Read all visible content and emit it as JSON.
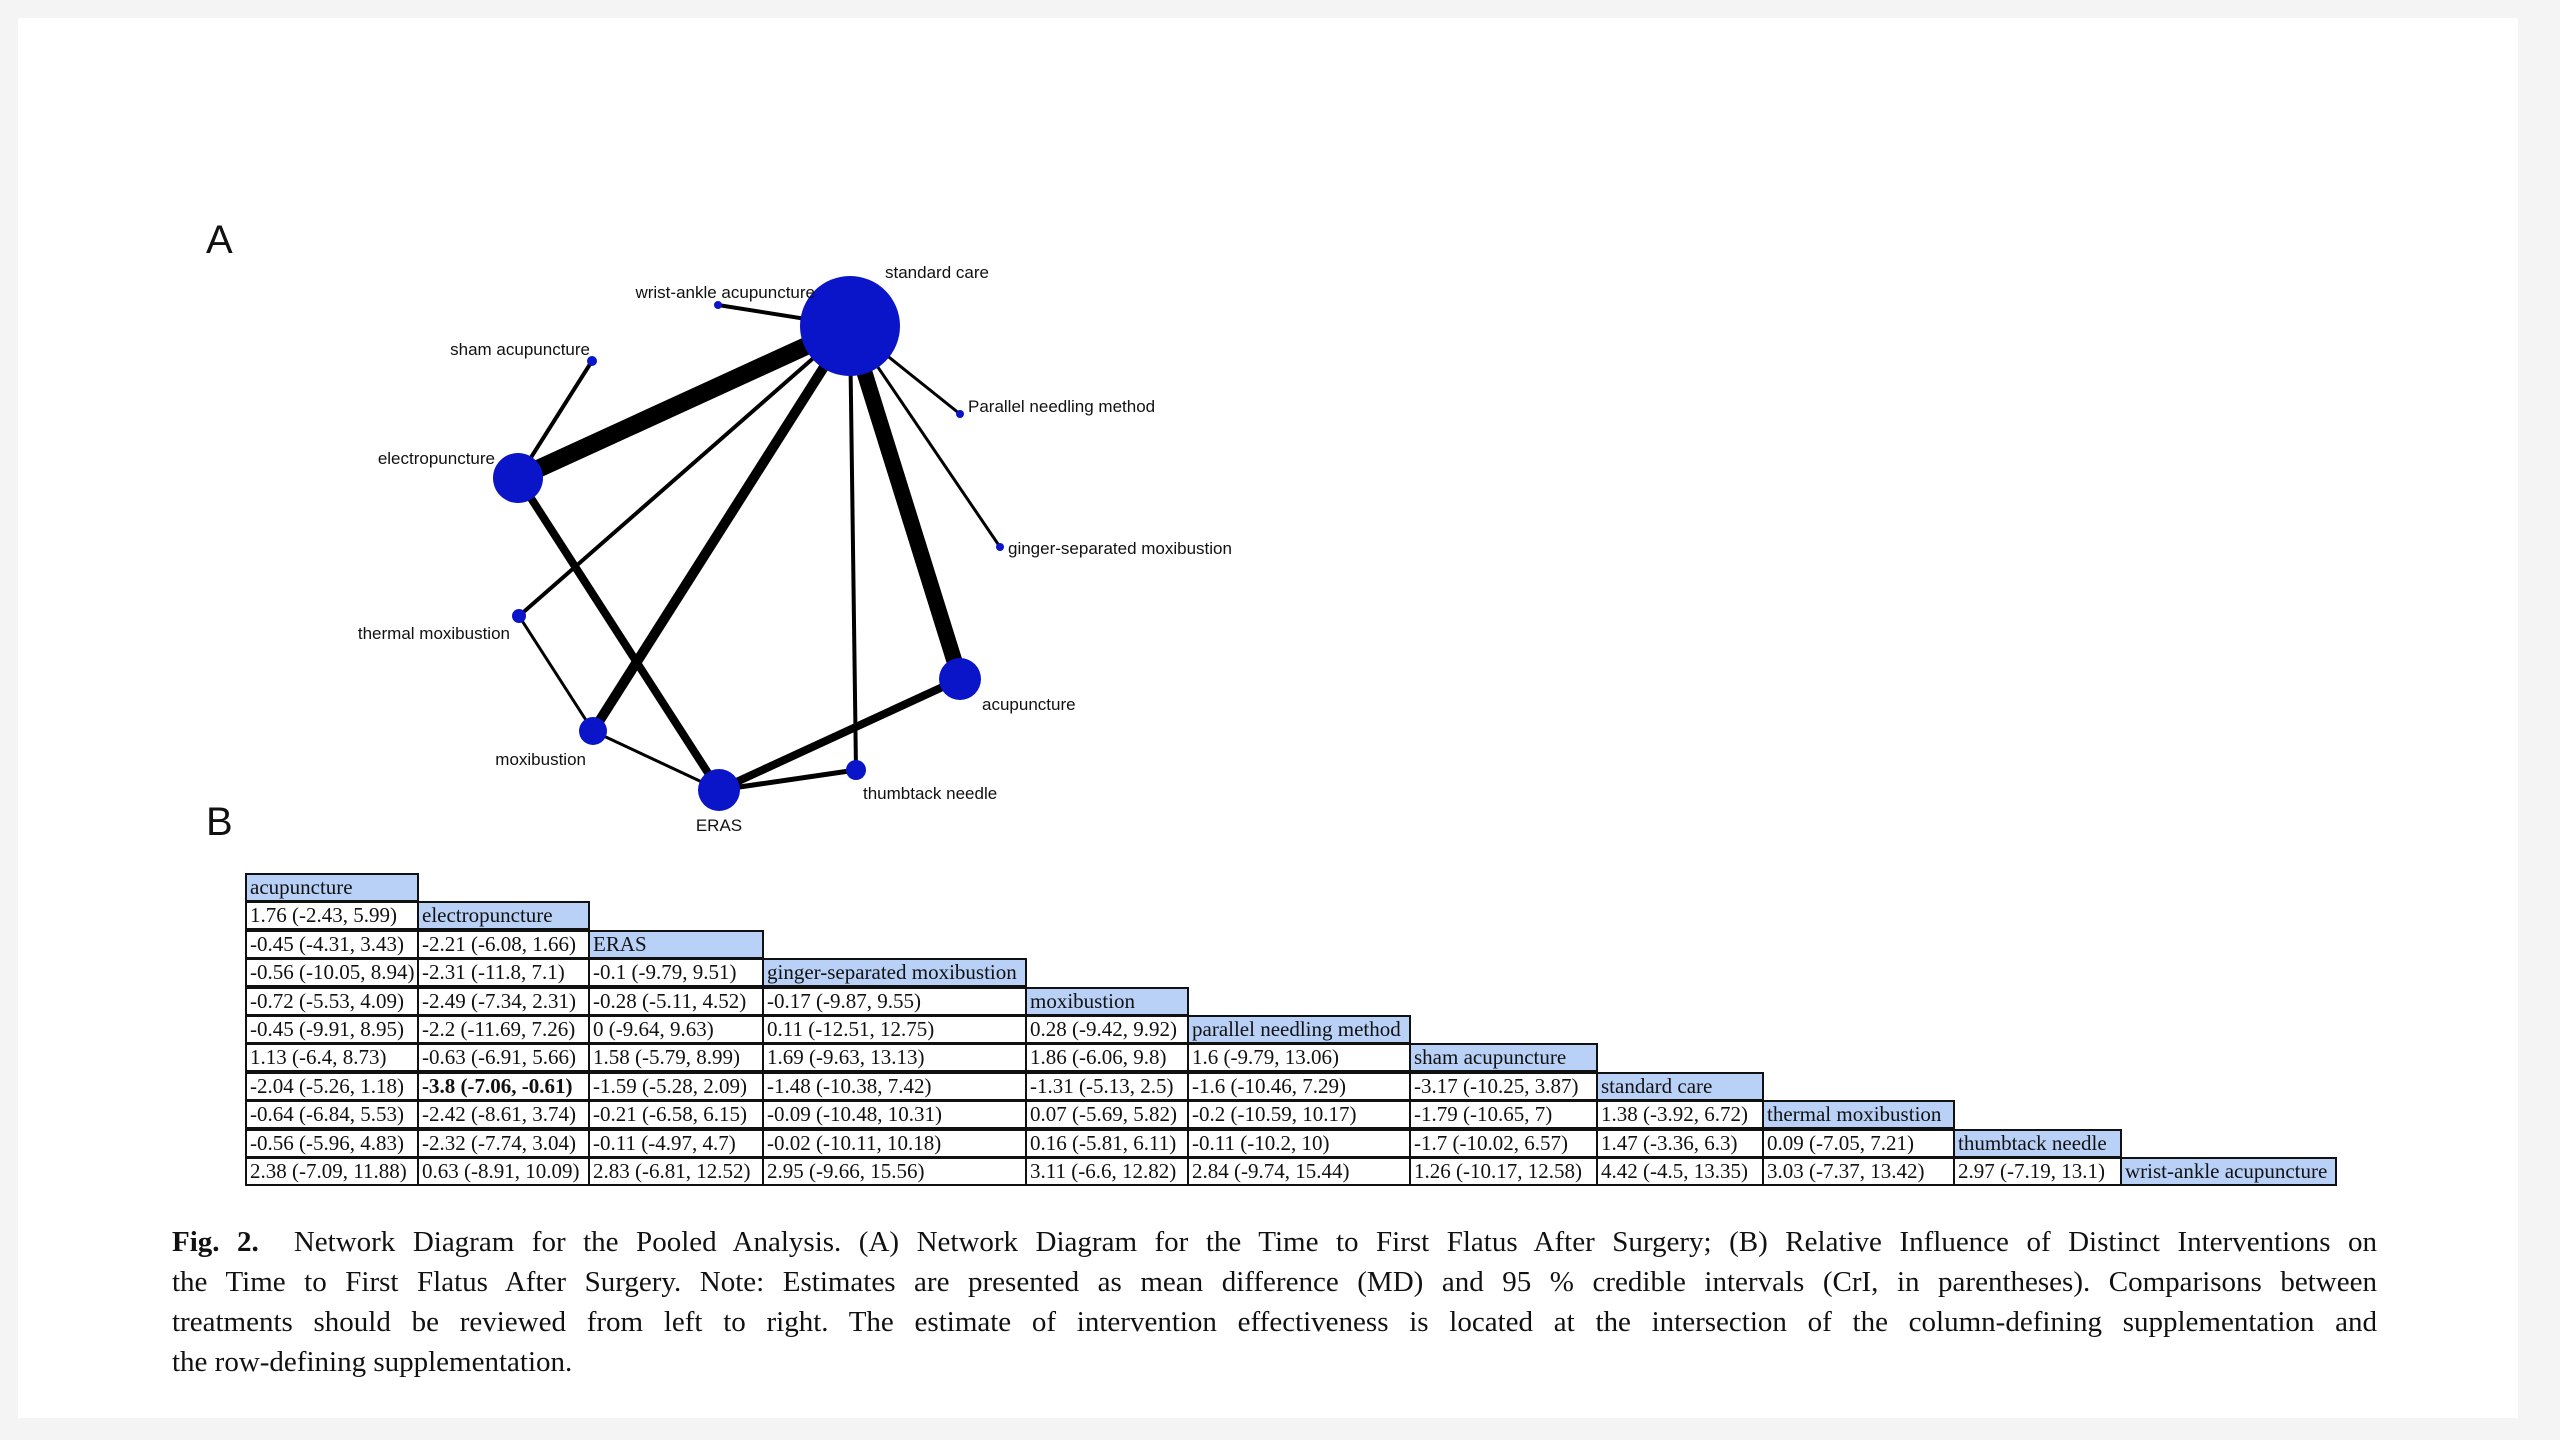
{
  "panel_a_label": "A",
  "panel_b_label": "B",
  "network": {
    "nodes": {
      "standard_care": "standard care",
      "wrist_ankle": "wrist-ankle acupuncture",
      "sham": "sham acupuncture",
      "electropuncture": "electropuncture",
      "thermal": "thermal moxibustion",
      "moxibustion": "moxibustion",
      "eras": "ERAS",
      "thumbtack": "thumbtack needle",
      "acupuncture": "acupuncture",
      "ginger": "ginger-separated moxibustion",
      "parallel": "Parallel needling method"
    },
    "node_color": "#0a14c8",
    "edge_color": "#000000"
  },
  "league_table": {
    "header_color": "#b9d1f7",
    "treatments": [
      "acupuncture",
      "electropuncture",
      "ERAS",
      "ginger-separated moxibustion",
      "moxibustion",
      "parallel needling method",
      "sham acupuncture",
      "standard care",
      "thermal moxibustion",
      "thumbtack needle",
      "wrist-ankle acupuncture"
    ],
    "rows": [
      [],
      [
        "1.76 (-2.43, 5.99)"
      ],
      [
        "-0.45 (-4.31, 3.43)",
        "-2.21 (-6.08, 1.66)"
      ],
      [
        "-0.56 (-10.05, 8.94)",
        "-2.31 (-11.8, 7.1)",
        "-0.1 (-9.79, 9.51)"
      ],
      [
        "-0.72 (-5.53, 4.09)",
        "-2.49 (-7.34, 2.31)",
        "-0.28 (-5.11, 4.52)",
        "-0.17 (-9.87, 9.55)"
      ],
      [
        "-0.45 (-9.91, 8.95)",
        "-2.2 (-11.69, 7.26)",
        "0 (-9.64, 9.63)",
        "0.11 (-12.51, 12.75)",
        "0.28 (-9.42, 9.92)"
      ],
      [
        "1.13 (-6.4, 8.73)",
        "-0.63 (-6.91, 5.66)",
        "1.58 (-5.79, 8.99)",
        "1.69 (-9.63, 13.13)",
        "1.86 (-6.06, 9.8)",
        "1.6 (-9.79, 13.06)"
      ],
      [
        "-2.04 (-5.26, 1.18)",
        "-3.8 (-7.06, -0.61)",
        "-1.59 (-5.28, 2.09)",
        "-1.48 (-10.38, 7.42)",
        "-1.31 (-5.13, 2.5)",
        "-1.6 (-10.46, 7.29)",
        "-3.17 (-10.25, 3.87)"
      ],
      [
        "-0.64 (-6.84, 5.53)",
        "-2.42 (-8.61, 3.74)",
        "-0.21 (-6.58, 6.15)",
        "-0.09 (-10.48, 10.31)",
        "0.07 (-5.69, 5.82)",
        "-0.2 (-10.59, 10.17)",
        "-1.79 (-10.65, 7)",
        "1.38 (-3.92, 6.72)"
      ],
      [
        "-0.56 (-5.96, 4.83)",
        "-2.32 (-7.74, 3.04)",
        "-0.11 (-4.97, 4.7)",
        "-0.02 (-10.11, 10.18)",
        "0.16 (-5.81, 6.11)",
        "-0.11 (-10.2, 10)",
        "-1.7 (-10.02, 6.57)",
        "1.47 (-3.36, 6.3)",
        "0.09 (-7.05, 7.21)"
      ],
      [
        "2.38 (-7.09, 11.88)",
        "0.63 (-8.91, 10.09)",
        "2.83 (-6.81, 12.52)",
        "2.95 (-9.66, 15.56)",
        "3.11 (-6.6, 12.82)",
        "2.84 (-9.74, 15.44)",
        "1.26 (-10.17, 12.58)",
        "4.42 (-4.5, 13.35)",
        "3.03 (-7.37, 13.42)",
        "2.97 (-7.19, 13.1)"
      ]
    ]
  },
  "caption": {
    "fig_label": "Fig. 2.",
    "lines": [
      "Network Diagram for the Pooled Analysis. (A) Network Diagram for the Time to First Flatus After Surgery; (B) Relative Influence of Distinct Interventions on",
      "the Time to First Flatus After Surgery. Note: Estimates are presented as mean difference (MD) and 95 % credible intervals (CrI, in parentheses). Comparisons between",
      "treatments should be reviewed from left to right. The estimate of intervention effectiveness is located at the intersection of the column-defining supplementation and",
      "the row-defining supplementation."
    ]
  }
}
